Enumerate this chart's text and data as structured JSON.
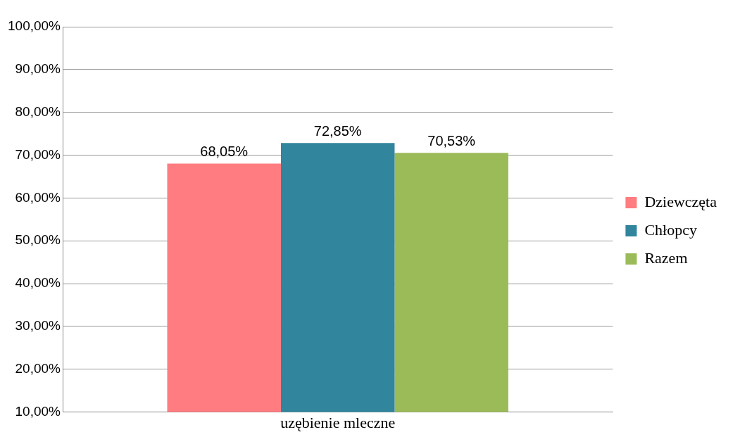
{
  "chart_data": {
    "type": "bar",
    "categories": [
      "uzębienie mleczne"
    ],
    "series": [
      {
        "name": "Dziewczęta",
        "color": "#ff7c80",
        "values": [
          68.05
        ],
        "value_labels": [
          "68,05%"
        ]
      },
      {
        "name": "Chłopcy",
        "color": "#31859c",
        "values": [
          72.85
        ],
        "value_labels": [
          "72,85%"
        ]
      },
      {
        "name": "Razem",
        "color": "#9bbb59",
        "values": [
          70.53
        ],
        "value_labels": [
          "70,53%"
        ]
      }
    ],
    "ylim": [
      10,
      100
    ],
    "yticks": [
      {
        "value": 10,
        "label": "10,00%"
      },
      {
        "value": 20,
        "label": "20,00%"
      },
      {
        "value": 30,
        "label": "30,00%"
      },
      {
        "value": 40,
        "label": "40,00%"
      },
      {
        "value": 50,
        "label": "50,00%"
      },
      {
        "value": 60,
        "label": "60,00%"
      },
      {
        "value": 70,
        "label": "70,00%"
      },
      {
        "value": 80,
        "label": "80,00%"
      },
      {
        "value": 90,
        "label": "90,00%"
      },
      {
        "value": 100,
        "label": "100,00%"
      }
    ],
    "grid": "y",
    "legend": "right"
  }
}
